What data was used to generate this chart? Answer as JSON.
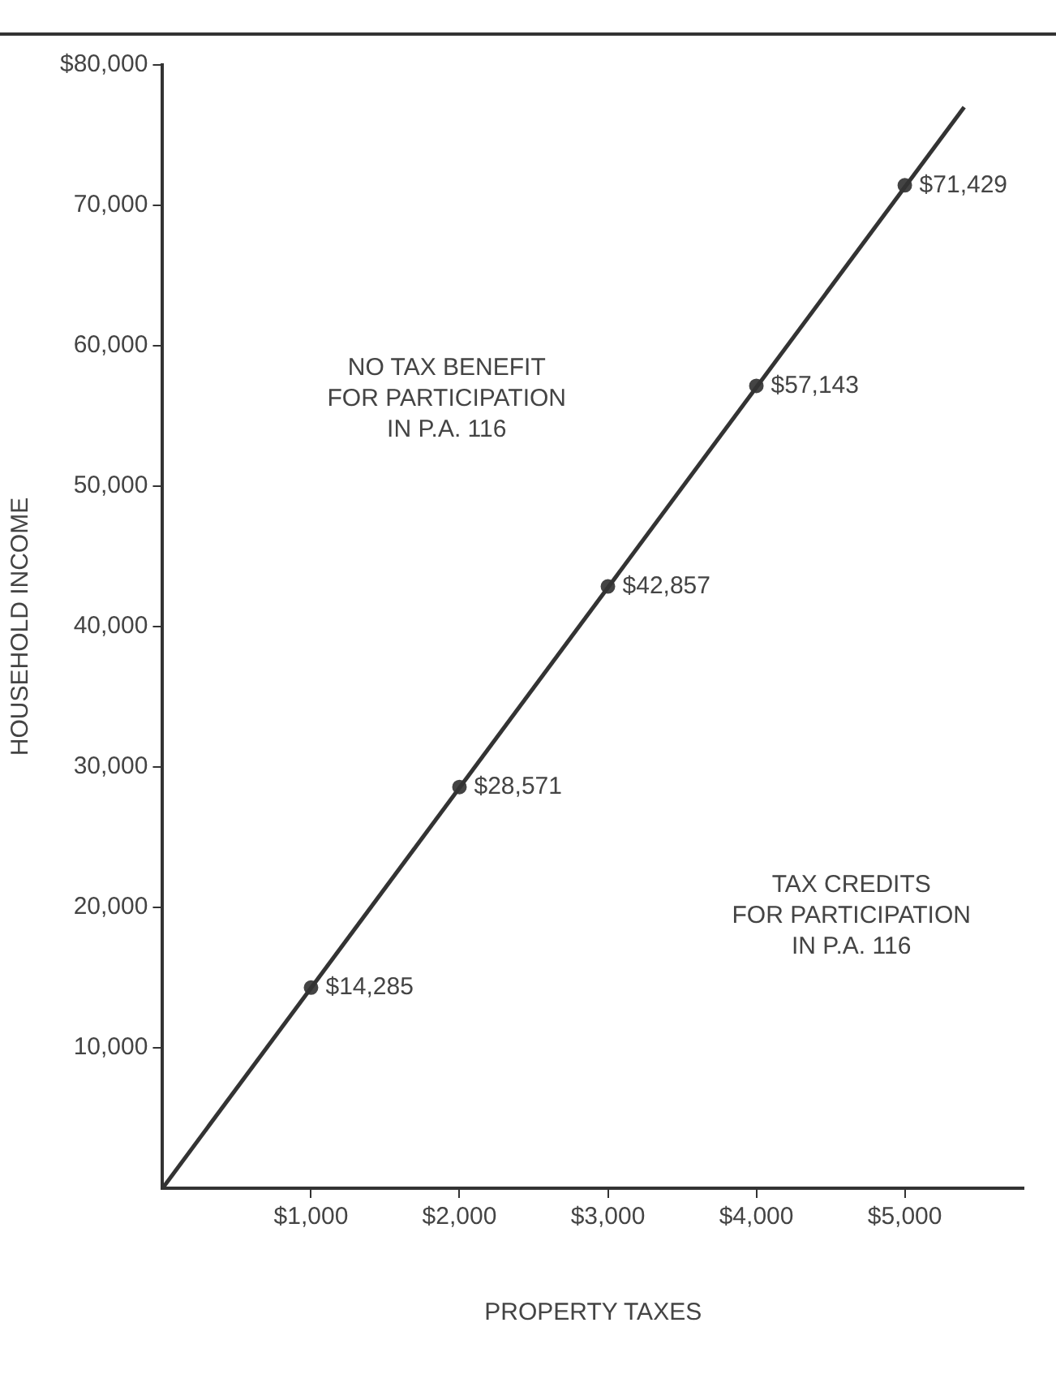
{
  "chart_data": {
    "type": "line",
    "xlabel": "PROPERTY TAXES",
    "ylabel": "HOUSEHOLD INCOME",
    "xlim": [
      0,
      5800
    ],
    "ylim": [
      0,
      80000
    ],
    "xticks": [
      {
        "value": 1000,
        "label": "$1,000"
      },
      {
        "value": 2000,
        "label": "$2,000"
      },
      {
        "value": 3000,
        "label": "$3,000"
      },
      {
        "value": 4000,
        "label": "$4,000"
      },
      {
        "value": 5000,
        "label": "$5,000"
      }
    ],
    "yticks": [
      {
        "value": 10000,
        "label": "10,000"
      },
      {
        "value": 20000,
        "label": "20,000"
      },
      {
        "value": 30000,
        "label": "30,000"
      },
      {
        "value": 40000,
        "label": "40,000"
      },
      {
        "value": 50000,
        "label": "50,000"
      },
      {
        "value": 60000,
        "label": "60,000"
      },
      {
        "value": 70000,
        "label": "70,000"
      },
      {
        "value": 80000,
        "label": "$80,000"
      }
    ],
    "grid": false,
    "legend": false,
    "series": [
      {
        "x": [
          0,
          5400
        ],
        "values": [
          0,
          77000
        ],
        "color": "#333333",
        "marker": "none"
      },
      {
        "type": "scatter",
        "x": [
          1000,
          2000,
          3000,
          4000,
          5000
        ],
        "values": [
          14285,
          28571,
          42857,
          57143,
          71429
        ],
        "color": "#444444",
        "marker": "circle",
        "value_labels": [
          "$14,285",
          "$28,571",
          "$42,857",
          "$57,143",
          "$71,429"
        ]
      }
    ],
    "annotations": [
      "NO TAX BENEFIT\nFOR PARTICIPATION\nIN P.A. 116",
      "TAX CREDITS\nFOR PARTICIPATION\nIN P.A. 116"
    ]
  }
}
